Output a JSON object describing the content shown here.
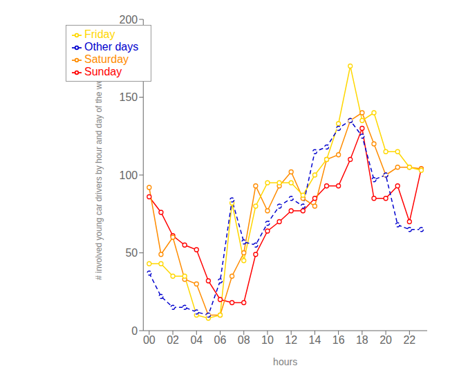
{
  "chart_data": {
    "type": "line",
    "xlabel": "hours",
    "ylabel": "# involved young car drivers by hour and day of the week",
    "x": [
      0,
      1,
      2,
      3,
      4,
      5,
      6,
      7,
      8,
      9,
      10,
      11,
      12,
      13,
      14,
      15,
      16,
      17,
      18,
      19,
      20,
      21,
      22,
      23
    ],
    "series": [
      {
        "name": "Sunday",
        "color": "#FF0000",
        "marker": "o",
        "line_style": "solid",
        "values": [
          86,
          76,
          61,
          55,
          52,
          32,
          20,
          18,
          18,
          49,
          64,
          70,
          77,
          77,
          85,
          93,
          93,
          110,
          130,
          85,
          85,
          93,
          70,
          104
        ]
      },
      {
        "name": "Saturday",
        "color": "#FF8C00",
        "marker": "o",
        "line_style": "solid",
        "values": [
          92,
          49,
          60,
          33,
          30,
          10,
          10,
          35,
          50,
          93,
          77,
          93,
          102,
          85,
          80,
          110,
          113,
          135,
          140,
          120,
          100,
          105,
          105,
          104
        ]
      },
      {
        "name": "Friday",
        "color": "#FFD700",
        "marker": "o",
        "line_style": "solid",
        "values": [
          43,
          43,
          35,
          35,
          10,
          8,
          10,
          82,
          45,
          80,
          95,
          95,
          95,
          87,
          100,
          110,
          133,
          170,
          135,
          140,
          115,
          115,
          105,
          103
        ]
      },
      {
        "name": "Other days",
        "color": "#0000CD",
        "marker": "o",
        "line_style": "dashed",
        "values": [
          37,
          22,
          15,
          15,
          12,
          10,
          32,
          84,
          57,
          55,
          69,
          80,
          85,
          80,
          115,
          118,
          130,
          135,
          125,
          97,
          100,
          68,
          65,
          65
        ]
      }
    ],
    "xlim": [
      -0.5,
      23.5
    ],
    "xticks": [
      {
        "value": 0,
        "label": "00"
      },
      {
        "value": 2,
        "label": "02"
      },
      {
        "value": 4,
        "label": "04"
      },
      {
        "value": 6,
        "label": "06"
      },
      {
        "value": 8,
        "label": "08"
      },
      {
        "value": 10,
        "label": "10"
      },
      {
        "value": 12,
        "label": "12"
      },
      {
        "value": 14,
        "label": "14"
      },
      {
        "value": 16,
        "label": "16"
      },
      {
        "value": 18,
        "label": "18"
      },
      {
        "value": 20,
        "label": "20"
      },
      {
        "value": 22,
        "label": "22"
      }
    ],
    "ylim": [
      0,
      200
    ],
    "yticks": [
      0,
      50,
      100,
      150,
      200
    ],
    "grid": false,
    "legend": "upper left"
  }
}
